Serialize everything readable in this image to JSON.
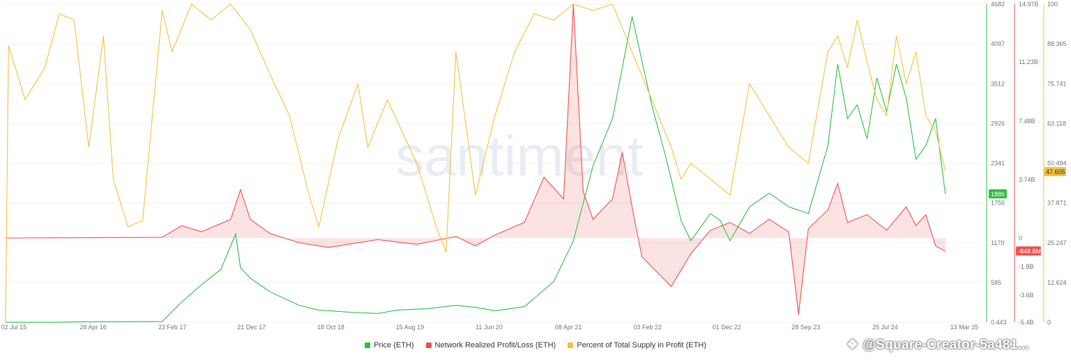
{
  "chart_data": {
    "type": "line",
    "brand_watermark": "santiment",
    "x_dates": [
      "02 Jul 15",
      "28 Apr 16",
      "23 Feb 17",
      "21 Dec 17",
      "18 Oct 18",
      "15 Aug 19",
      "11 Jun 20",
      "08 Apr 21",
      "03 Feb 22",
      "01 Dec 22",
      "28 Sep 23",
      "25 Jul 24",
      "13 Mar 25"
    ],
    "axes": {
      "price": {
        "ticks": [
          "4682",
          "4097",
          "3512",
          "2926",
          "2341",
          "1756",
          "1170",
          "585",
          "0.443"
        ],
        "ylim": [
          0.443,
          4682
        ],
        "color": "#2bbf40"
      },
      "pnl": {
        "ticks": [
          "14.97B",
          "11.23B",
          "7.48B",
          "3.74B",
          "0",
          "-1.8B",
          "-3.6B",
          "-5.4B"
        ],
        "color": "#ef4f4f"
      },
      "profit_pct": {
        "ticks": [
          "100",
          "88.365",
          "75.741",
          "63.118",
          "50.494",
          "37.871",
          "25.247",
          "12.624",
          "0"
        ],
        "ylim": [
          0,
          100
        ],
        "color": "#f3c13a"
      }
    },
    "last_values": {
      "price": "1886",
      "pnl": "-848.8M",
      "profit_pct": "47.605"
    },
    "series": [
      {
        "name": "Price (ETH)",
        "color": "#2bbf40",
        "points": [
          [
            0,
            1
          ],
          [
            0.05,
            1
          ],
          [
            0.08,
            8
          ],
          [
            0.13,
            10
          ],
          [
            0.16,
            12
          ],
          [
            0.18,
            300
          ],
          [
            0.2,
            550
          ],
          [
            0.22,
            780
          ],
          [
            0.235,
            1300
          ],
          [
            0.24,
            800
          ],
          [
            0.25,
            650
          ],
          [
            0.27,
            450
          ],
          [
            0.3,
            250
          ],
          [
            0.32,
            180
          ],
          [
            0.35,
            150
          ],
          [
            0.38,
            130
          ],
          [
            0.4,
            180
          ],
          [
            0.43,
            200
          ],
          [
            0.46,
            250
          ],
          [
            0.48,
            220
          ],
          [
            0.5,
            170
          ],
          [
            0.53,
            230
          ],
          [
            0.56,
            600
          ],
          [
            0.58,
            1200
          ],
          [
            0.6,
            2300
          ],
          [
            0.62,
            3000
          ],
          [
            0.64,
            4500
          ],
          [
            0.66,
            3200
          ],
          [
            0.675,
            2400
          ],
          [
            0.69,
            1500
          ],
          [
            0.7,
            1200
          ],
          [
            0.72,
            1600
          ],
          [
            0.73,
            1500
          ],
          [
            0.74,
            1200
          ],
          [
            0.76,
            1700
          ],
          [
            0.78,
            1900
          ],
          [
            0.8,
            1700
          ],
          [
            0.82,
            1600
          ],
          [
            0.84,
            2600
          ],
          [
            0.85,
            3800
          ],
          [
            0.86,
            3000
          ],
          [
            0.87,
            3200
          ],
          [
            0.88,
            2700
          ],
          [
            0.89,
            3600
          ],
          [
            0.9,
            3100
          ],
          [
            0.91,
            3800
          ],
          [
            0.92,
            3300
          ],
          [
            0.93,
            2400
          ],
          [
            0.94,
            2600
          ],
          [
            0.95,
            3000
          ],
          [
            0.96,
            1886
          ]
        ]
      },
      {
        "name": "Network Realized Profit/Loss (ETH)",
        "color": "#ef4f4f",
        "points": [
          [
            0,
            0
          ],
          [
            0.16,
            0.05
          ],
          [
            0.18,
            0.8
          ],
          [
            0.2,
            0.4
          ],
          [
            0.23,
            1.2
          ],
          [
            0.24,
            3.1
          ],
          [
            0.25,
            1.2
          ],
          [
            0.27,
            0.3
          ],
          [
            0.3,
            -0.3
          ],
          [
            0.33,
            -0.6
          ],
          [
            0.38,
            -0.1
          ],
          [
            0.42,
            -0.4
          ],
          [
            0.46,
            0.1
          ],
          [
            0.48,
            -0.5
          ],
          [
            0.5,
            0.2
          ],
          [
            0.53,
            1.0
          ],
          [
            0.55,
            3.9
          ],
          [
            0.57,
            2.5
          ],
          [
            0.58,
            14.97
          ],
          [
            0.59,
            3.0
          ],
          [
            0.6,
            1.2
          ],
          [
            0.62,
            2.5
          ],
          [
            0.63,
            5.5
          ],
          [
            0.64,
            2.0
          ],
          [
            0.65,
            -1.2
          ],
          [
            0.68,
            -3.1
          ],
          [
            0.7,
            -1.0
          ],
          [
            0.72,
            0.5
          ],
          [
            0.74,
            1.0
          ],
          [
            0.76,
            0.3
          ],
          [
            0.78,
            1.2
          ],
          [
            0.8,
            0.4
          ],
          [
            0.81,
            -4.9
          ],
          [
            0.82,
            0.6
          ],
          [
            0.84,
            1.8
          ],
          [
            0.85,
            3.5
          ],
          [
            0.86,
            1.0
          ],
          [
            0.88,
            1.5
          ],
          [
            0.9,
            0.5
          ],
          [
            0.92,
            2.0
          ],
          [
            0.93,
            0.8
          ],
          [
            0.94,
            1.5
          ],
          [
            0.95,
            -0.5
          ],
          [
            0.96,
            -0.85
          ]
        ]
      },
      {
        "name": "Percent of Total Supply in Profit (ETH)",
        "color": "#f3c13a",
        "points": [
          [
            0,
            0
          ],
          [
            0.003,
            87
          ],
          [
            0.02,
            70
          ],
          [
            0.04,
            80
          ],
          [
            0.055,
            97
          ],
          [
            0.07,
            95
          ],
          [
            0.085,
            55
          ],
          [
            0.1,
            90
          ],
          [
            0.11,
            45
          ],
          [
            0.125,
            30
          ],
          [
            0.14,
            32
          ],
          [
            0.16,
            98
          ],
          [
            0.17,
            85
          ],
          [
            0.19,
            100
          ],
          [
            0.21,
            95
          ],
          [
            0.23,
            100
          ],
          [
            0.25,
            92
          ],
          [
            0.27,
            78
          ],
          [
            0.29,
            65
          ],
          [
            0.31,
            40
          ],
          [
            0.32,
            30
          ],
          [
            0.34,
            58
          ],
          [
            0.36,
            75
          ],
          [
            0.37,
            55
          ],
          [
            0.39,
            70
          ],
          [
            0.42,
            50
          ],
          [
            0.44,
            30
          ],
          [
            0.45,
            22
          ],
          [
            0.46,
            85
          ],
          [
            0.48,
            40
          ],
          [
            0.5,
            65
          ],
          [
            0.52,
            85
          ],
          [
            0.54,
            97
          ],
          [
            0.56,
            95
          ],
          [
            0.58,
            100
          ],
          [
            0.6,
            98
          ],
          [
            0.62,
            100
          ],
          [
            0.64,
            85
          ],
          [
            0.66,
            70
          ],
          [
            0.68,
            55
          ],
          [
            0.69,
            45
          ],
          [
            0.7,
            50
          ],
          [
            0.72,
            45
          ],
          [
            0.74,
            40
          ],
          [
            0.76,
            75
          ],
          [
            0.78,
            65
          ],
          [
            0.8,
            55
          ],
          [
            0.82,
            50
          ],
          [
            0.84,
            85
          ],
          [
            0.85,
            90
          ],
          [
            0.86,
            80
          ],
          [
            0.87,
            95
          ],
          [
            0.88,
            82
          ],
          [
            0.89,
            70
          ],
          [
            0.9,
            65
          ],
          [
            0.91,
            90
          ],
          [
            0.92,
            75
          ],
          [
            0.93,
            85
          ],
          [
            0.94,
            65
          ],
          [
            0.95,
            60
          ],
          [
            0.96,
            47.6
          ]
        ]
      }
    ],
    "legend_position": "bottom-center",
    "grid": true
  },
  "legend": [
    {
      "label": "Price (ETH)",
      "color": "#2bbf40"
    },
    {
      "label": "Network Realized Profit/Loss (ETH)",
      "color": "#ef4f4f"
    },
    {
      "label": "Percent of Total Supply in Profit (ETH)",
      "color": "#f3c13a"
    }
  ],
  "overlay": {
    "text": "@Square-Creator-5a481..."
  }
}
